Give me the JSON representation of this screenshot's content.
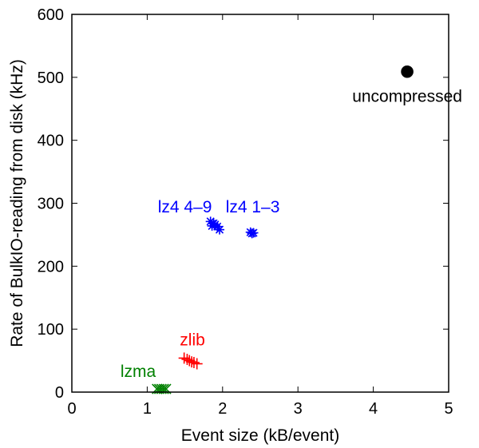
{
  "chart_data": {
    "type": "scatter",
    "title": "",
    "xlabel": "Event size (kB/event)",
    "ylabel": "Rate of BulkIO-reading from disk (kHz)",
    "xlim": [
      0,
      5
    ],
    "ylim": [
      0,
      600
    ],
    "xticks": [
      "0",
      "1",
      "2",
      "3",
      "4",
      "5"
    ],
    "yticks": [
      "0",
      "100",
      "200",
      "300",
      "400",
      "500",
      "600"
    ],
    "grid": false,
    "legend": "none",
    "series": [
      {
        "marker": "x",
        "color": "#008000",
        "points": [
          [
            1.13,
            5
          ],
          [
            1.16,
            5
          ],
          [
            1.19,
            5
          ],
          [
            1.22,
            5
          ],
          [
            1.25,
            5
          ]
        ]
      },
      {
        "marker": "+",
        "color": "#ff0000",
        "points": [
          [
            1.49,
            54
          ],
          [
            1.53,
            52
          ],
          [
            1.56,
            50
          ],
          [
            1.59,
            48
          ],
          [
            1.62,
            47
          ],
          [
            1.66,
            45
          ]
        ]
      },
      {
        "marker": "*",
        "color": "#0000ff",
        "points": [
          [
            1.84,
            271
          ],
          [
            1.86,
            264
          ],
          [
            1.88,
            268
          ],
          [
            1.9,
            266
          ],
          [
            1.93,
            263
          ],
          [
            1.96,
            258
          ]
        ]
      },
      {
        "marker": "*",
        "color": "#0000ff",
        "points": [
          [
            2.37,
            254
          ],
          [
            2.39,
            252
          ],
          [
            2.41,
            253
          ]
        ]
      },
      {
        "marker": "o",
        "color": "#000000",
        "points": [
          [
            4.45,
            509
          ]
        ]
      }
    ],
    "annotations": [
      {
        "text": "uncompressed",
        "x": 4.45,
        "y": 470,
        "color": "#000000"
      },
      {
        "text": "lz4 1–3",
        "x": 2.4,
        "y": 294,
        "color": "#0000ff"
      },
      {
        "text": "lz4 4–9",
        "x": 1.5,
        "y": 294,
        "color": "#0000ff"
      },
      {
        "text": "zlib",
        "x": 1.6,
        "y": 83,
        "color": "#ff0000"
      },
      {
        "text": "lzma",
        "x": 0.88,
        "y": 33,
        "color": "#008000"
      }
    ]
  }
}
